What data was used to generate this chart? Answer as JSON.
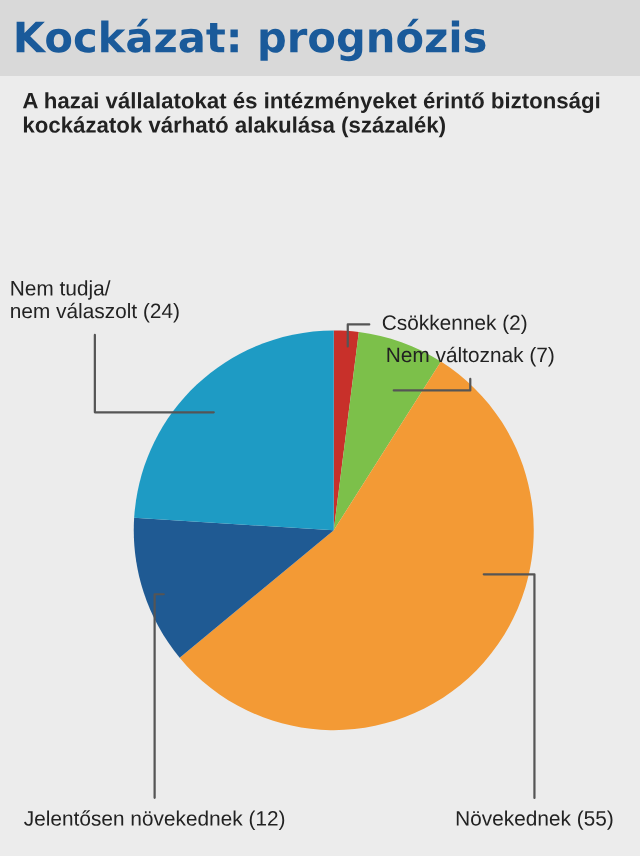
{
  "chart_data": {
    "type": "pie",
    "title": "Kockázat: prognózis",
    "subtitle": "A hazai vállalatokat és intézményeket érintő biztonsági kockázatok várható alakulása (százalék)",
    "categories": [
      "Csökkennek (2)",
      "Nem változnak (7)",
      "Növekednek (55)",
      "Jelentősen növekednek (12)",
      "Nem tudja/\nnem válaszolt (24)"
    ],
    "values": [
      2,
      7,
      55,
      12,
      24
    ],
    "colors": [
      "#c8302a",
      "#7cc04a",
      "#f39a35",
      "#1f5a93",
      "#1e9bc4"
    ]
  }
}
